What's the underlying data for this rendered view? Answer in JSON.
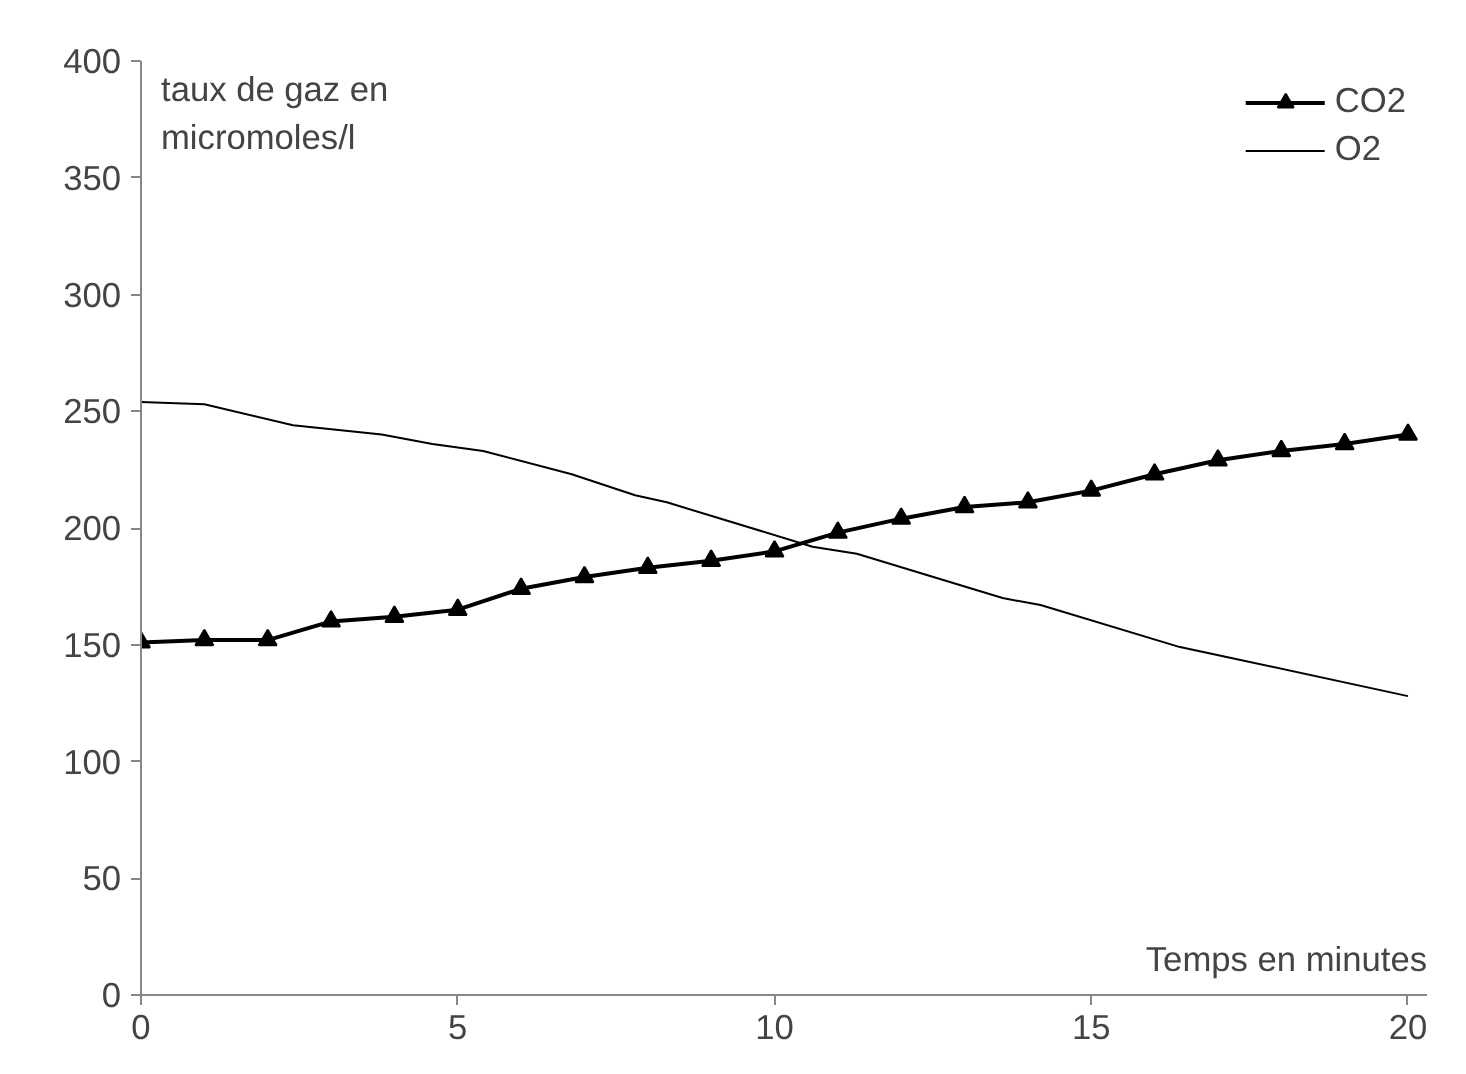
{
  "chart_data": {
    "type": "line",
    "xlabel": "Temps en minutes",
    "ylabel": "taux de gaz en\nmicromoles/l",
    "xlim": [
      0,
      20.3
    ],
    "ylim": [
      0,
      400
    ],
    "xticks": [
      0,
      5,
      10,
      15,
      20
    ],
    "yticks": [
      0,
      50,
      100,
      150,
      200,
      250,
      300,
      350,
      400
    ],
    "grid": false,
    "legend": "top right",
    "series": [
      {
        "name": "CO2",
        "color": "#000000",
        "marker": "triangle",
        "x": [
          0,
          1,
          2,
          3,
          4,
          5,
          6,
          7,
          8,
          9,
          10,
          11,
          12,
          13,
          14,
          15,
          16,
          17,
          18,
          19,
          20
        ],
        "values": [
          151,
          152,
          152,
          160,
          162,
          165,
          174,
          179,
          183,
          186,
          190,
          198,
          204,
          209,
          211,
          216,
          223,
          229,
          233,
          236,
          240
        ]
      },
      {
        "name": "O2",
        "color": "#000000",
        "marker": "none",
        "x": [
          0,
          1,
          2.4,
          3.8,
          4.6,
          5.4,
          6.8,
          7.8,
          8.3,
          10.6,
          11.3,
          13.6,
          14.2,
          16.4,
          17.1,
          20
        ],
        "values": [
          254,
          253,
          244,
          240,
          236,
          233,
          223,
          214,
          211,
          192,
          189,
          170,
          167,
          149,
          145,
          128
        ]
      }
    ]
  }
}
